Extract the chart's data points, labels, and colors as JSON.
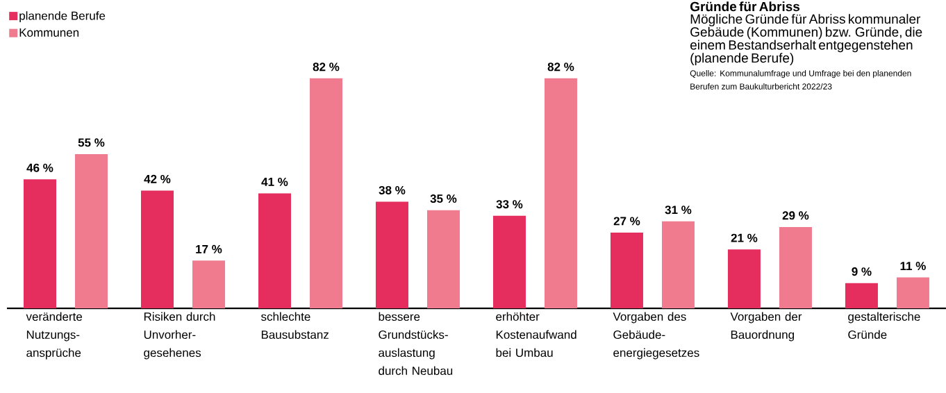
{
  "chart_data": {
    "type": "bar",
    "title": "Gründe für Abriss",
    "subtitle": "Mögliche Gründe für Abriss kommunaler Gebäude (Kommunen) bzw. Gründe, die einem Bestandserhalt entgegenstehen (planende Berufe)",
    "annotations": [
      "Quelle: Kommunalumfrage und Umfrage bei den planenden Berufen zum Baukulturbericht 2022/23"
    ],
    "categories": [
      "veränderte Nutzungs-ansprüche",
      "Risiken durch Unvorher-gesehenes",
      "schlechte Bausubstanz",
      "bessere Grundstücks-auslastung durch Neubau",
      "erhöhter Kostenaufwand bei Umbau",
      "Vorgaben des Gebäude-energiegesetzes",
      "Vorgaben der Bauordnung",
      "gestalterische Gründe"
    ],
    "series": [
      {
        "name": "planende Berufe",
        "color": "#e62e5e",
        "values": [
          46,
          42,
          41,
          38,
          33,
          27,
          21,
          9
        ],
        "value_labels": [
          "46 %",
          "42 %",
          "41 %",
          "38 %",
          "33 %",
          "27 %",
          "21 %",
          "9 %"
        ]
      },
      {
        "name": "Kommunen",
        "color": "#f07b8e",
        "values": [
          55,
          17,
          82,
          35,
          82,
          31,
          29,
          11
        ],
        "value_labels": [
          "55 %",
          "17 %",
          "82 %",
          "35 %",
          "82 %",
          "31 %",
          "29 %",
          "11 %"
        ]
      }
    ],
    "legend": "top left"
  }
}
